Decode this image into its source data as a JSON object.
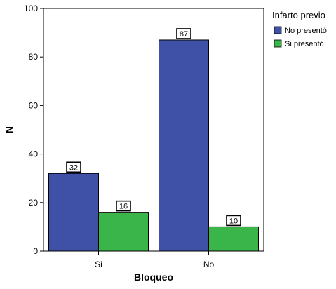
{
  "chart_data": {
    "type": "bar",
    "title": "",
    "xlabel": "Bloqueo",
    "ylabel": "N",
    "categories": [
      "Si",
      "No"
    ],
    "series": [
      {
        "name": "No presentó",
        "values": [
          32,
          87
        ],
        "color": "#3f51a6"
      },
      {
        "name": "Si presentó",
        "values": [
          16,
          10
        ],
        "color": "#3ab54a"
      }
    ],
    "ylim": [
      0,
      100
    ],
    "yticks": [
      0,
      20,
      40,
      60,
      80,
      100
    ],
    "legend": {
      "title": "Infarto previo",
      "placement": "top-right, outside plot"
    },
    "grid": false,
    "data_labels": true
  }
}
